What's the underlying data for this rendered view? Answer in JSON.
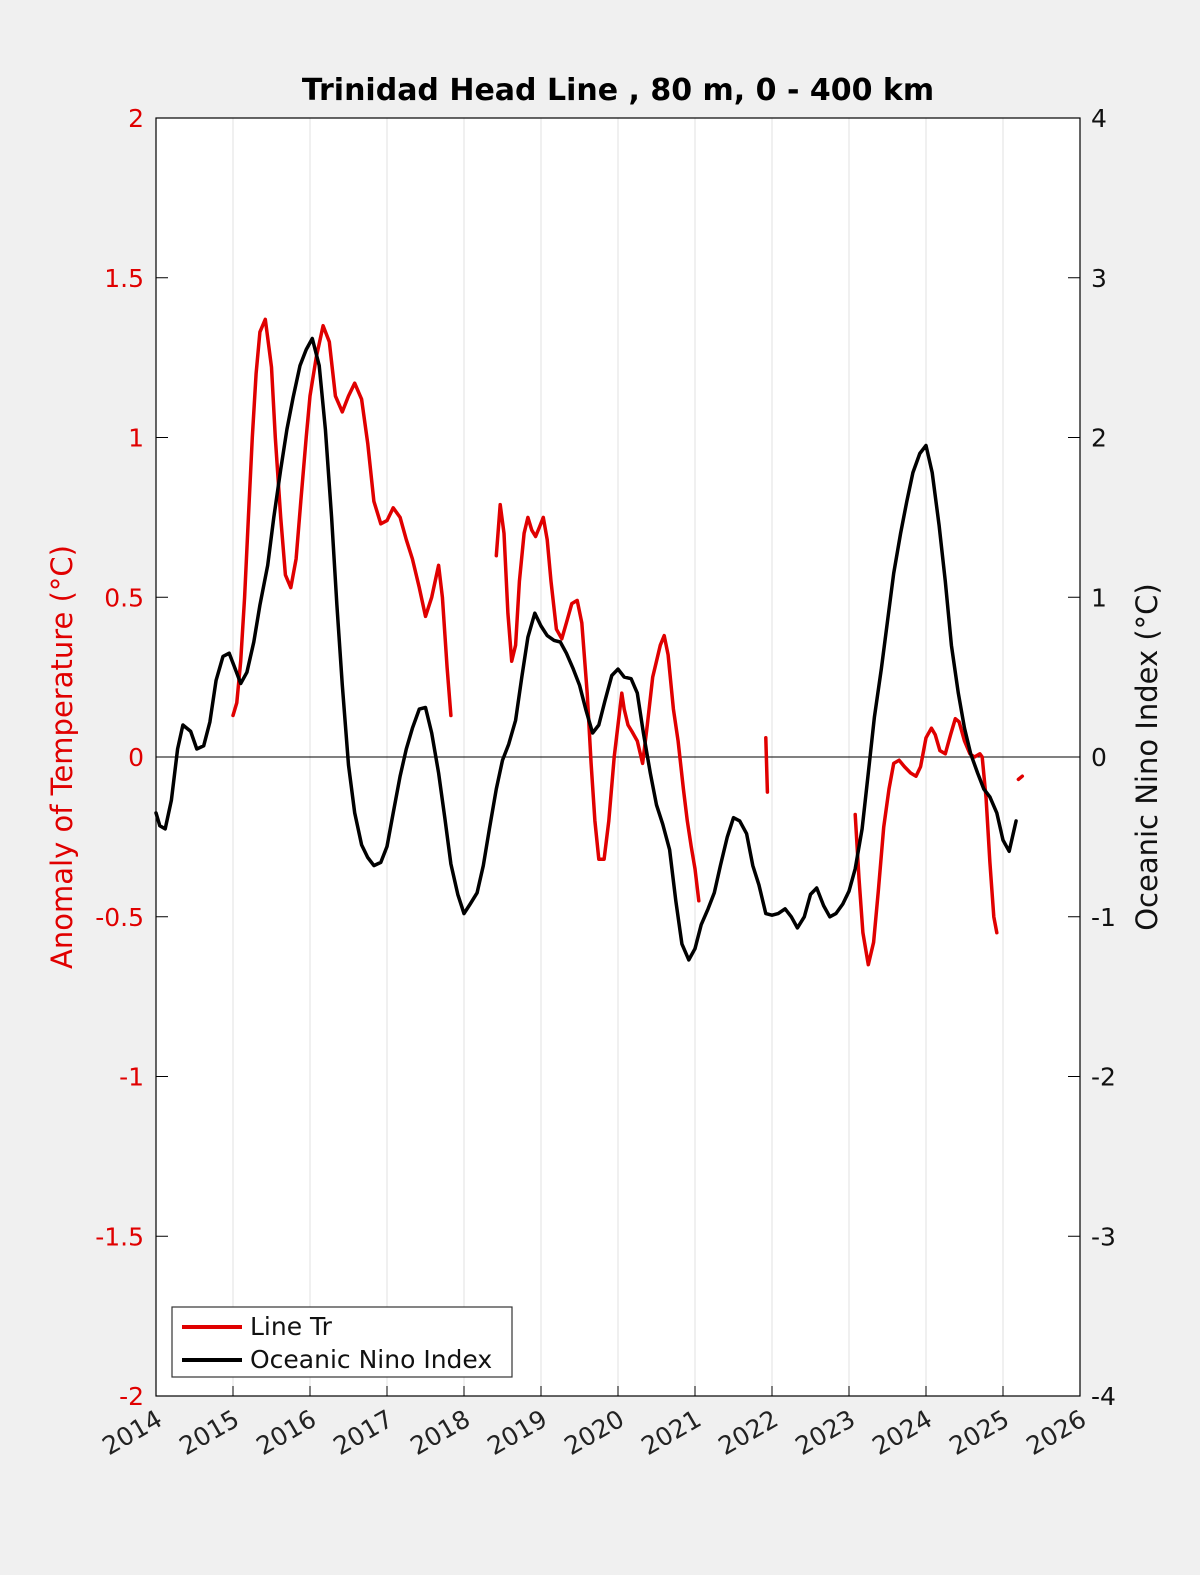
{
  "chart_data": {
    "type": "line",
    "title": "Trinidad Head Line , 80 m, 0 - 400 km",
    "ylabel": "Anomaly of Temperature (°C)",
    "ylabel_right": "Oceanic Nino Index (°C)",
    "xlim": [
      2014,
      2026
    ],
    "ylim": [
      -2,
      2
    ],
    "ylim_right": [
      -4,
      4
    ],
    "x_ticks": [
      "2014",
      "2015",
      "2016",
      "2017",
      "2018",
      "2019",
      "2020",
      "2021",
      "2022",
      "2023",
      "2024",
      "2025",
      "2026"
    ],
    "y_ticks": [
      "-2",
      "-1.5",
      "-1",
      "-0.5",
      "0",
      "0.5",
      "1",
      "1.5",
      "2"
    ],
    "y_ticks_right": [
      "-4",
      "-3",
      "-2",
      "-1",
      "0",
      "1",
      "2",
      "3",
      "4"
    ],
    "grid": "vertical",
    "zero_line": 0,
    "legend_position": "bottom-left",
    "colors": {
      "line_tr": "#e00000",
      "oni": "#000000"
    },
    "series": [
      {
        "name": "Line Tr",
        "axis": "left",
        "segments": [
          [
            [
              2015.0,
              0.13
            ],
            [
              2015.05,
              0.17
            ],
            [
              2015.1,
              0.3
            ],
            [
              2015.15,
              0.5
            ],
            [
              2015.2,
              0.75
            ],
            [
              2015.25,
              1.0
            ],
            [
              2015.3,
              1.2
            ],
            [
              2015.35,
              1.33
            ],
            [
              2015.42,
              1.37
            ],
            [
              2015.5,
              1.22
            ],
            [
              2015.55,
              1.0
            ],
            [
              2015.62,
              0.75
            ],
            [
              2015.68,
              0.57
            ],
            [
              2015.75,
              0.53
            ],
            [
              2015.82,
              0.62
            ],
            [
              2015.88,
              0.8
            ],
            [
              2015.95,
              1.0
            ],
            [
              2016.0,
              1.13
            ],
            [
              2016.08,
              1.25
            ],
            [
              2016.17,
              1.35
            ],
            [
              2016.25,
              1.3
            ],
            [
              2016.33,
              1.13
            ],
            [
              2016.42,
              1.08
            ],
            [
              2016.5,
              1.13
            ],
            [
              2016.58,
              1.17
            ],
            [
              2016.67,
              1.12
            ],
            [
              2016.75,
              0.98
            ],
            [
              2016.83,
              0.8
            ],
            [
              2016.92,
              0.73
            ],
            [
              2017.0,
              0.74
            ],
            [
              2017.08,
              0.78
            ],
            [
              2017.17,
              0.75
            ],
            [
              2017.25,
              0.68
            ],
            [
              2017.33,
              0.62
            ],
            [
              2017.42,
              0.53
            ],
            [
              2017.5,
              0.44
            ],
            [
              2017.58,
              0.5
            ],
            [
              2017.67,
              0.6
            ],
            [
              2017.72,
              0.5
            ],
            [
              2017.78,
              0.28
            ],
            [
              2017.83,
              0.13
            ]
          ],
          [
            [
              2018.42,
              0.63
            ],
            [
              2018.47,
              0.79
            ],
            [
              2018.52,
              0.7
            ],
            [
              2018.57,
              0.45
            ],
            [
              2018.62,
              0.3
            ],
            [
              2018.67,
              0.35
            ],
            [
              2018.72,
              0.55
            ],
            [
              2018.78,
              0.7
            ],
            [
              2018.83,
              0.75
            ],
            [
              2018.88,
              0.71
            ],
            [
              2018.93,
              0.69
            ],
            [
              2018.98,
              0.72
            ],
            [
              2019.03,
              0.75
            ],
            [
              2019.08,
              0.68
            ],
            [
              2019.13,
              0.55
            ],
            [
              2019.2,
              0.4
            ],
            [
              2019.27,
              0.37
            ],
            [
              2019.33,
              0.42
            ],
            [
              2019.4,
              0.48
            ],
            [
              2019.47,
              0.49
            ],
            [
              2019.53,
              0.42
            ],
            [
              2019.6,
              0.2
            ],
            [
              2019.65,
              -0.02
            ],
            [
              2019.7,
              -0.2
            ],
            [
              2019.75,
              -0.32
            ],
            [
              2019.82,
              -0.32
            ],
            [
              2019.88,
              -0.2
            ],
            [
              2019.95,
              0.0
            ],
            [
              2020.0,
              0.1
            ],
            [
              2020.05,
              0.2
            ],
            [
              2020.08,
              0.15
            ],
            [
              2020.13,
              0.1
            ],
            [
              2020.18,
              0.08
            ],
            [
              2020.25,
              0.05
            ],
            [
              2020.32,
              -0.02
            ],
            [
              2020.38,
              0.1
            ],
            [
              2020.45,
              0.25
            ],
            [
              2020.5,
              0.3
            ],
            [
              2020.55,
              0.35
            ],
            [
              2020.6,
              0.38
            ],
            [
              2020.65,
              0.32
            ],
            [
              2020.72,
              0.15
            ],
            [
              2020.78,
              0.05
            ],
            [
              2020.85,
              -0.1
            ],
            [
              2020.9,
              -0.2
            ],
            [
              2020.95,
              -0.28
            ],
            [
              2021.0,
              -0.35
            ],
            [
              2021.05,
              -0.45
            ]
          ],
          [
            [
              2021.92,
              0.06
            ],
            [
              2021.94,
              -0.11
            ]
          ],
          [
            [
              2023.08,
              -0.18
            ],
            [
              2023.13,
              -0.38
            ],
            [
              2023.18,
              -0.55
            ],
            [
              2023.25,
              -0.65
            ],
            [
              2023.32,
              -0.58
            ],
            [
              2023.38,
              -0.42
            ],
            [
              2023.45,
              -0.22
            ],
            [
              2023.52,
              -0.1
            ],
            [
              2023.58,
              -0.02
            ],
            [
              2023.65,
              -0.01
            ],
            [
              2023.72,
              -0.03
            ],
            [
              2023.8,
              -0.05
            ],
            [
              2023.87,
              -0.06
            ],
            [
              2023.93,
              -0.03
            ],
            [
              2024.0,
              0.06
            ],
            [
              2024.07,
              0.09
            ],
            [
              2024.12,
              0.07
            ],
            [
              2024.18,
              0.02
            ],
            [
              2024.25,
              0.01
            ],
            [
              2024.32,
              0.07
            ],
            [
              2024.38,
              0.12
            ],
            [
              2024.43,
              0.11
            ],
            [
              2024.5,
              0.05
            ],
            [
              2024.57,
              0.01
            ],
            [
              2024.63,
              0.0
            ],
            [
              2024.7,
              0.01
            ],
            [
              2024.73,
              0.0
            ],
            [
              2024.78,
              -0.13
            ],
            [
              2024.83,
              -0.33
            ],
            [
              2024.88,
              -0.5
            ],
            [
              2024.92,
              -0.55
            ]
          ],
          [
            [
              2025.2,
              -0.07
            ],
            [
              2025.25,
              -0.06
            ]
          ]
        ]
      },
      {
        "name": "Oceanic Nino Index",
        "axis": "right",
        "points": [
          [
            2014.0,
            -0.35
          ],
          [
            2014.05,
            -0.43
          ],
          [
            2014.12,
            -0.45
          ],
          [
            2014.2,
            -0.27
          ],
          [
            2014.28,
            0.05
          ],
          [
            2014.35,
            0.2
          ],
          [
            2014.45,
            0.16
          ],
          [
            2014.53,
            0.05
          ],
          [
            2014.62,
            0.07
          ],
          [
            2014.7,
            0.22
          ],
          [
            2014.78,
            0.48
          ],
          [
            2014.87,
            0.63
          ],
          [
            2014.95,
            0.65
          ],
          [
            2015.03,
            0.55
          ],
          [
            2015.1,
            0.46
          ],
          [
            2015.18,
            0.53
          ],
          [
            2015.27,
            0.72
          ],
          [
            2015.35,
            0.95
          ],
          [
            2015.45,
            1.2
          ],
          [
            2015.53,
            1.5
          ],
          [
            2015.62,
            1.8
          ],
          [
            2015.7,
            2.05
          ],
          [
            2015.78,
            2.25
          ],
          [
            2015.87,
            2.45
          ],
          [
            2015.95,
            2.55
          ],
          [
            2016.03,
            2.62
          ],
          [
            2016.12,
            2.45
          ],
          [
            2016.2,
            2.05
          ],
          [
            2016.28,
            1.5
          ],
          [
            2016.35,
            0.95
          ],
          [
            2016.42,
            0.45
          ],
          [
            2016.5,
            -0.05
          ],
          [
            2016.58,
            -0.35
          ],
          [
            2016.67,
            -0.55
          ],
          [
            2016.75,
            -0.63
          ],
          [
            2016.83,
            -0.68
          ],
          [
            2016.92,
            -0.66
          ],
          [
            2017.0,
            -0.56
          ],
          [
            2017.08,
            -0.35
          ],
          [
            2017.17,
            -0.12
          ],
          [
            2017.25,
            0.05
          ],
          [
            2017.33,
            0.18
          ],
          [
            2017.42,
            0.3
          ],
          [
            2017.5,
            0.31
          ],
          [
            2017.58,
            0.15
          ],
          [
            2017.67,
            -0.1
          ],
          [
            2017.75,
            -0.38
          ],
          [
            2017.83,
            -0.67
          ],
          [
            2017.92,
            -0.86
          ],
          [
            2018.0,
            -0.98
          ],
          [
            2018.08,
            -0.92
          ],
          [
            2018.17,
            -0.85
          ],
          [
            2018.25,
            -0.68
          ],
          [
            2018.33,
            -0.45
          ],
          [
            2018.42,
            -0.2
          ],
          [
            2018.5,
            -0.02
          ],
          [
            2018.58,
            0.08
          ],
          [
            2018.67,
            0.23
          ],
          [
            2018.75,
            0.5
          ],
          [
            2018.83,
            0.75
          ],
          [
            2018.92,
            0.9
          ],
          [
            2019.0,
            0.82
          ],
          [
            2019.08,
            0.76
          ],
          [
            2019.17,
            0.73
          ],
          [
            2019.25,
            0.72
          ],
          [
            2019.33,
            0.65
          ],
          [
            2019.42,
            0.55
          ],
          [
            2019.5,
            0.45
          ],
          [
            2019.58,
            0.3
          ],
          [
            2019.67,
            0.15
          ],
          [
            2019.75,
            0.2
          ],
          [
            2019.83,
            0.35
          ],
          [
            2019.92,
            0.51
          ],
          [
            2020.0,
            0.55
          ],
          [
            2020.08,
            0.5
          ],
          [
            2020.17,
            0.49
          ],
          [
            2020.25,
            0.4
          ],
          [
            2020.33,
            0.15
          ],
          [
            2020.42,
            -0.1
          ],
          [
            2020.5,
            -0.3
          ],
          [
            2020.58,
            -0.42
          ],
          [
            2020.67,
            -0.58
          ],
          [
            2020.75,
            -0.9
          ],
          [
            2020.83,
            -1.17
          ],
          [
            2020.92,
            -1.27
          ],
          [
            2021.0,
            -1.2
          ],
          [
            2021.08,
            -1.05
          ],
          [
            2021.17,
            -0.95
          ],
          [
            2021.25,
            -0.85
          ],
          [
            2021.33,
            -0.68
          ],
          [
            2021.42,
            -0.5
          ],
          [
            2021.5,
            -0.38
          ],
          [
            2021.58,
            -0.4
          ],
          [
            2021.67,
            -0.48
          ],
          [
            2021.75,
            -0.68
          ],
          [
            2021.83,
            -0.8
          ],
          [
            2021.92,
            -0.98
          ],
          [
            2022.0,
            -0.99
          ],
          [
            2022.08,
            -0.98
          ],
          [
            2022.17,
            -0.95
          ],
          [
            2022.25,
            -1.0
          ],
          [
            2022.33,
            -1.07
          ],
          [
            2022.42,
            -1.0
          ],
          [
            2022.5,
            -0.86
          ],
          [
            2022.58,
            -0.82
          ],
          [
            2022.67,
            -0.93
          ],
          [
            2022.75,
            -1.0
          ],
          [
            2022.83,
            -0.98
          ],
          [
            2022.92,
            -0.92
          ],
          [
            2023.0,
            -0.84
          ],
          [
            2023.08,
            -0.7
          ],
          [
            2023.17,
            -0.45
          ],
          [
            2023.25,
            -0.1
          ],
          [
            2023.33,
            0.25
          ],
          [
            2023.42,
            0.55
          ],
          [
            2023.5,
            0.85
          ],
          [
            2023.58,
            1.15
          ],
          [
            2023.67,
            1.4
          ],
          [
            2023.75,
            1.6
          ],
          [
            2023.83,
            1.78
          ],
          [
            2023.92,
            1.9
          ],
          [
            2024.0,
            1.95
          ],
          [
            2024.08,
            1.78
          ],
          [
            2024.17,
            1.45
          ],
          [
            2024.25,
            1.1
          ],
          [
            2024.33,
            0.7
          ],
          [
            2024.42,
            0.4
          ],
          [
            2024.5,
            0.18
          ],
          [
            2024.58,
            0.02
          ],
          [
            2024.67,
            -0.1
          ],
          [
            2024.75,
            -0.2
          ],
          [
            2024.83,
            -0.25
          ],
          [
            2024.92,
            -0.35
          ],
          [
            2025.0,
            -0.52
          ],
          [
            2025.08,
            -0.59
          ],
          [
            2025.17,
            -0.4
          ]
        ]
      }
    ]
  }
}
